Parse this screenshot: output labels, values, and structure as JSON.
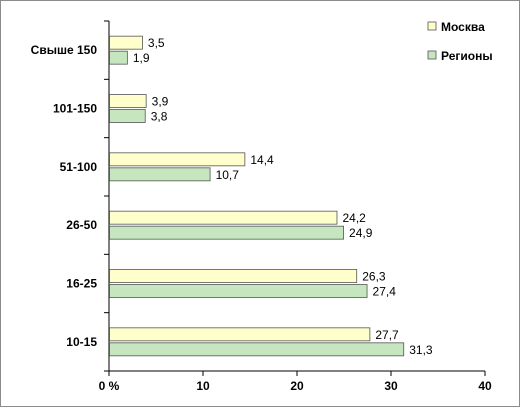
{
  "chart_data": {
    "type": "bar",
    "orientation": "horizontal",
    "categories": [
      "Свыше 150",
      "101-150",
      "51-100",
      "26-50",
      "16-25",
      "10-15"
    ],
    "series": [
      {
        "name": "Москва",
        "color": "#ffffcc",
        "values": [
          3.5,
          3.9,
          14.4,
          24.2,
          26.3,
          27.7
        ],
        "labels": [
          "3,5",
          "3,9",
          "14,4",
          "24,2",
          "26,3",
          "27,7"
        ]
      },
      {
        "name": "Регионы",
        "color": "#c6e6c0",
        "values": [
          1.9,
          3.8,
          10.7,
          24.9,
          27.4,
          31.3
        ],
        "labels": [
          "1,9",
          "3,8",
          "10,7",
          "24,9",
          "27,4",
          "31,3"
        ]
      }
    ],
    "xlim": [
      0,
      40
    ],
    "xticks": [
      0,
      10,
      20,
      30,
      40
    ],
    "xtick_labels": [
      "0 %",
      "10",
      "20",
      "30",
      "40"
    ],
    "grid": false,
    "legend_position": "top-right"
  }
}
